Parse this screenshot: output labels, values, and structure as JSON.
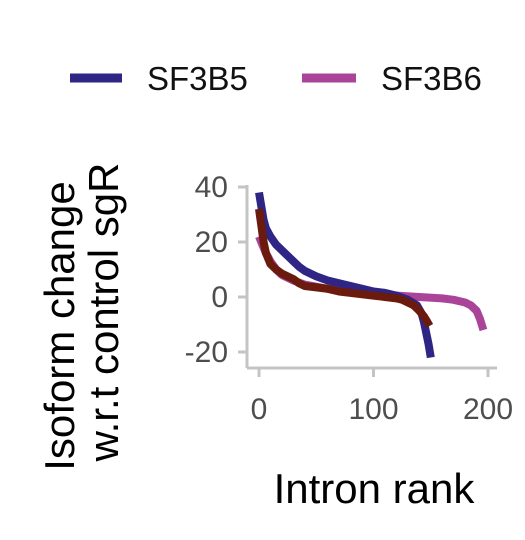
{
  "chart_data": {
    "type": "line",
    "title": "",
    "xlabel": "Intron rank",
    "ylabel_lines": [
      "Isoform change",
      "w.r.t control sgR"
    ],
    "xlim": [
      -5,
      210
    ],
    "ylim": [
      -25,
      42
    ],
    "x_ticks": [
      0,
      100,
      200
    ],
    "y_ticks": [
      40,
      20,
      0,
      -20
    ],
    "grid": false,
    "legend_position": "top",
    "series": [
      {
        "name": "SF3B5",
        "color": "#2e2585",
        "points": [
          [
            0,
            38
          ],
          [
            2,
            33
          ],
          [
            4,
            28
          ],
          [
            6,
            25
          ],
          [
            10,
            22
          ],
          [
            15,
            19
          ],
          [
            20,
            17
          ],
          [
            25,
            15
          ],
          [
            30,
            13
          ],
          [
            35,
            11
          ],
          [
            40,
            9.5
          ],
          [
            50,
            7.5
          ],
          [
            60,
            6
          ],
          [
            70,
            5
          ],
          [
            80,
            4
          ],
          [
            90,
            3
          ],
          [
            100,
            2
          ],
          [
            110,
            1.5
          ],
          [
            120,
            0.5
          ],
          [
            130,
            -1
          ],
          [
            138,
            -3
          ],
          [
            142,
            -6
          ],
          [
            144,
            -9
          ],
          [
            146,
            -13
          ],
          [
            148,
            -17
          ],
          [
            150,
            -22
          ]
        ]
      },
      {
        "name": "SF3B6",
        "color": "#aa4499",
        "points": [
          [
            0,
            22
          ],
          [
            3,
            19
          ],
          [
            6,
            16
          ],
          [
            10,
            13
          ],
          [
            15,
            10
          ],
          [
            20,
            8
          ],
          [
            30,
            6
          ],
          [
            40,
            4.5
          ],
          [
            60,
            3
          ],
          [
            80,
            2
          ],
          [
            100,
            1
          ],
          [
            120,
            0.5
          ],
          [
            140,
            0
          ],
          [
            160,
            -0.5
          ],
          [
            170,
            -1
          ],
          [
            180,
            -2
          ],
          [
            185,
            -3
          ],
          [
            190,
            -5
          ],
          [
            193,
            -8
          ],
          [
            196,
            -12
          ]
        ]
      },
      {
        "name": "",
        "color": "#6b1a0e",
        "points": [
          [
            0,
            32
          ],
          [
            2,
            26
          ],
          [
            4,
            20
          ],
          [
            6,
            16
          ],
          [
            10,
            12
          ],
          [
            15,
            10
          ],
          [
            20,
            8.5
          ],
          [
            25,
            7.5
          ],
          [
            30,
            6.5
          ],
          [
            35,
            5
          ],
          [
            40,
            4
          ],
          [
            50,
            3.5
          ],
          [
            60,
            3
          ],
          [
            70,
            2
          ],
          [
            80,
            1.5
          ],
          [
            90,
            1
          ],
          [
            100,
            0.5
          ],
          [
            110,
            0
          ],
          [
            120,
            -0.5
          ],
          [
            125,
            -1
          ],
          [
            130,
            -2
          ],
          [
            135,
            -3
          ],
          [
            140,
            -5
          ],
          [
            144,
            -7
          ],
          [
            147,
            -9
          ],
          [
            149,
            -10.5
          ]
        ]
      }
    ]
  },
  "legend": {
    "items": [
      {
        "label": "SF3B5",
        "color": "#2e2585"
      },
      {
        "label": "SF3B6",
        "color": "#aa4499"
      }
    ]
  }
}
